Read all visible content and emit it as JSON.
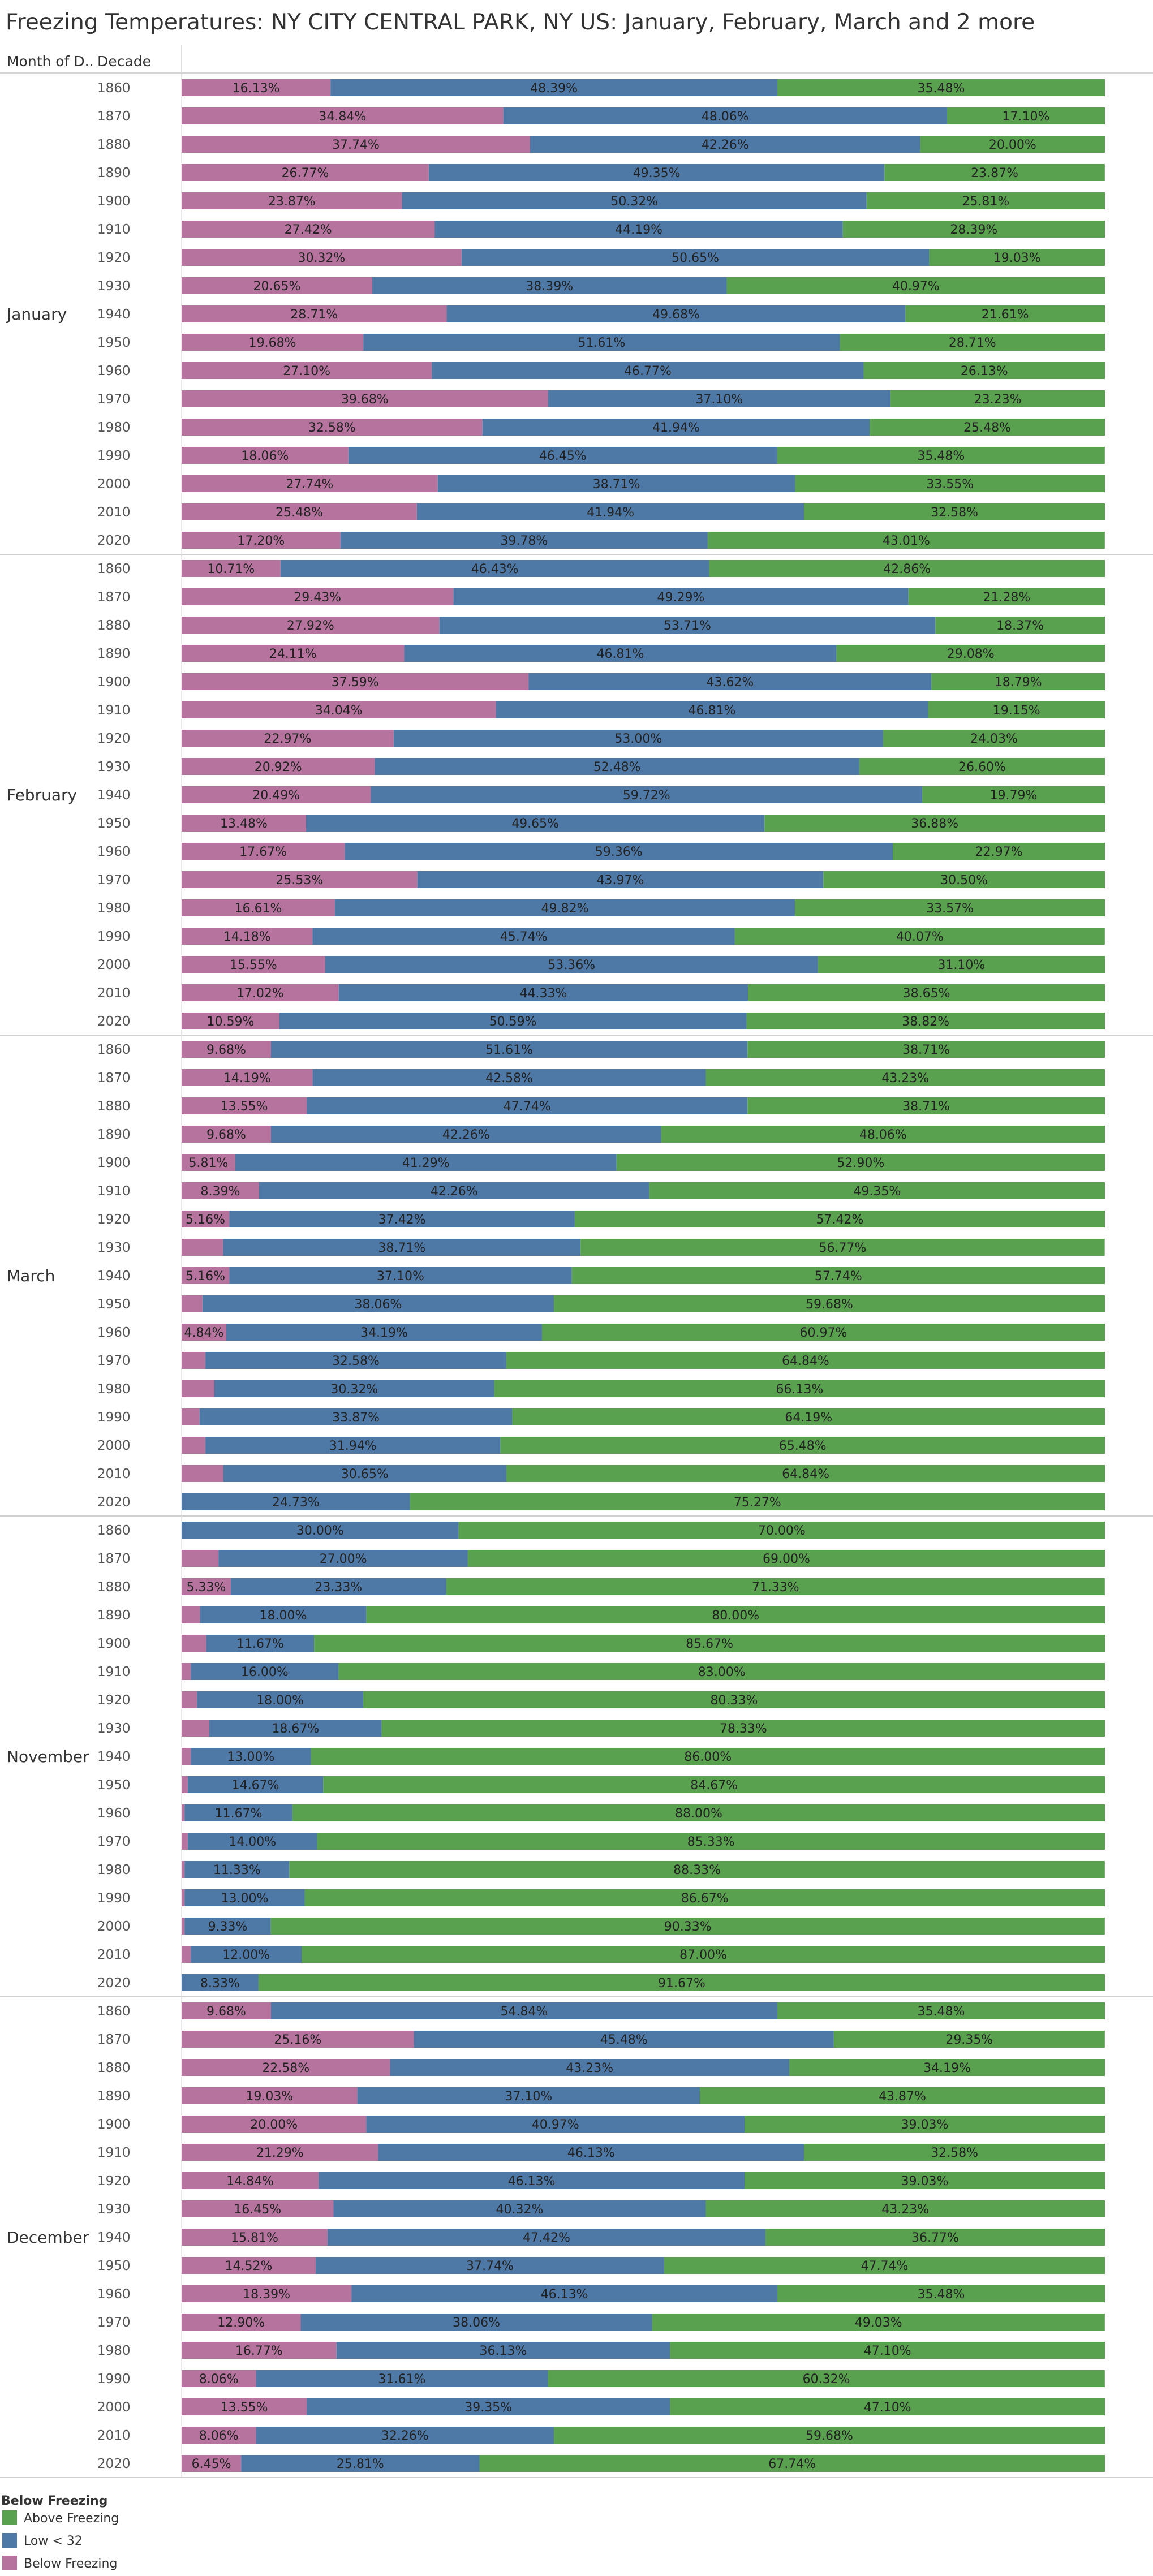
{
  "chart_data": {
    "type": "bar",
    "stacked": "horizontal-100%",
    "title": "Freezing Temperatures: NY CITY CENTRAL PARK, NY US: January, February, March and 2 more",
    "row_headers": [
      "Month of D..",
      "Decade"
    ],
    "xlim": [
      0,
      100
    ],
    "grid": false,
    "legend_title": "Below Freezing",
    "legend_position": "bottom-left",
    "series": [
      {
        "key": "below",
        "name": "Below Freezing",
        "color": "#B5739D"
      },
      {
        "key": "low",
        "name": "Low < 32",
        "color": "#4E79A7"
      },
      {
        "key": "above",
        "name": "Above Freezing",
        "color": "#59A14F"
      }
    ],
    "legend_order": [
      "above",
      "low",
      "below"
    ],
    "decades": [
      "1860",
      "1870",
      "1880",
      "1890",
      "1900",
      "1910",
      "1920",
      "1930",
      "1940",
      "1950",
      "1960",
      "1970",
      "1980",
      "1990",
      "2000",
      "2010",
      "2020"
    ],
    "months": [
      {
        "name": "January",
        "below": [
          16.13,
          34.84,
          37.74,
          26.77,
          23.87,
          27.42,
          30.32,
          20.65,
          28.71,
          19.68,
          27.1,
          39.68,
          32.58,
          18.06,
          27.74,
          25.48,
          17.2
        ],
        "low": [
          48.39,
          48.06,
          42.26,
          49.35,
          50.32,
          44.19,
          50.65,
          38.39,
          49.68,
          51.61,
          46.77,
          37.1,
          41.94,
          46.45,
          38.71,
          41.94,
          39.78
        ],
        "above": [
          35.48,
          17.1,
          20.0,
          23.87,
          25.81,
          28.39,
          19.03,
          40.97,
          21.61,
          28.71,
          26.13,
          23.23,
          25.48,
          35.48,
          33.55,
          32.58,
          43.01
        ],
        "below_labels": [
          "16.13%",
          "34.84%",
          "37.74%",
          "26.77%",
          "23.87%",
          "27.42%",
          "30.32%",
          "20.65%",
          "28.71%",
          "19.68%",
          "27.10%",
          "39.68%",
          "32.58%",
          "18.06%",
          "27.74%",
          "25.48%",
          "17.20%"
        ],
        "low_labels": [
          "48.39%",
          "48.06%",
          "42.26%",
          "49.35%",
          "50.32%",
          "44.19%",
          "50.65%",
          "38.39%",
          "49.68%",
          "51.61%",
          "46.77%",
          "37.10%",
          "41.94%",
          "46.45%",
          "38.71%",
          "41.94%",
          "39.78%"
        ],
        "above_labels": [
          "35.48%",
          "17.10%",
          "20.00%",
          "23.87%",
          "25.81%",
          "28.39%",
          "19.03%",
          "40.97%",
          "21.61%",
          "28.71%",
          "26.13%",
          "23.23%",
          "25.48%",
          "35.48%",
          "33.55%",
          "32.58%",
          "43.01%"
        ]
      },
      {
        "name": "February",
        "below": [
          10.71,
          29.43,
          27.92,
          24.11,
          37.59,
          34.04,
          22.97,
          20.92,
          20.49,
          13.48,
          17.67,
          25.53,
          16.61,
          14.18,
          15.55,
          17.02,
          10.59
        ],
        "low": [
          46.43,
          49.29,
          53.71,
          46.81,
          43.62,
          46.81,
          53.0,
          52.48,
          59.72,
          49.65,
          59.36,
          43.97,
          49.82,
          45.74,
          53.36,
          44.33,
          50.59
        ],
        "above": [
          42.86,
          21.28,
          18.37,
          29.08,
          18.79,
          19.15,
          24.03,
          26.6,
          19.79,
          36.88,
          22.97,
          30.5,
          33.57,
          40.07,
          31.1,
          38.65,
          38.82
        ],
        "below_labels": [
          "10.71%",
          "29.43%",
          "27.92%",
          "24.11%",
          "37.59%",
          "34.04%",
          "22.97%",
          "20.92%",
          "20.49%",
          "13.48%",
          "17.67%",
          "25.53%",
          "16.61%",
          "14.18%",
          "15.55%",
          "17.02%",
          "10.59%"
        ],
        "low_labels": [
          "46.43%",
          "49.29%",
          "53.71%",
          "46.81%",
          "43.62%",
          "46.81%",
          "53.00%",
          "52.48%",
          "59.72%",
          "49.65%",
          "59.36%",
          "43.97%",
          "49.82%",
          "45.74%",
          "53.36%",
          "44.33%",
          "50.59%"
        ],
        "above_labels": [
          "42.86%",
          "21.28%",
          "18.37%",
          "29.08%",
          "18.79%",
          "19.15%",
          "24.03%",
          "26.60%",
          "19.79%",
          "36.88%",
          "22.97%",
          "30.50%",
          "33.57%",
          "40.07%",
          "31.10%",
          "38.65%",
          "38.82%"
        ]
      },
      {
        "name": "March",
        "below": [
          9.68,
          14.19,
          13.55,
          9.68,
          5.81,
          8.39,
          5.16,
          4.5,
          5.16,
          2.26,
          4.84,
          2.58,
          3.55,
          1.94,
          2.58,
          4.52,
          0
        ],
        "low": [
          51.61,
          42.58,
          47.74,
          42.26,
          41.29,
          42.26,
          37.42,
          38.71,
          37.1,
          38.06,
          34.19,
          32.58,
          30.32,
          33.87,
          31.94,
          30.65,
          24.73
        ],
        "above": [
          38.71,
          43.23,
          38.71,
          48.06,
          52.9,
          49.35,
          57.42,
          56.77,
          57.74,
          59.68,
          60.97,
          64.84,
          66.13,
          64.19,
          65.48,
          64.84,
          75.27
        ],
        "below_labels": [
          "9.68%",
          "14.19%",
          "13.55%",
          "9.68%",
          "5.81%",
          "8.39%",
          "5.16%",
          "",
          "5.16%",
          "",
          "4.84%",
          "",
          "",
          "",
          "",
          "",
          ""
        ],
        "low_labels": [
          "51.61%",
          "42.58%",
          "47.74%",
          "42.26%",
          "41.29%",
          "42.26%",
          "37.42%",
          "38.71%",
          "37.10%",
          "38.06%",
          "34.19%",
          "32.58%",
          "30.32%",
          "33.87%",
          "31.94%",
          "30.65%",
          "24.73%"
        ],
        "above_labels": [
          "38.71%",
          "43.23%",
          "38.71%",
          "48.06%",
          "52.90%",
          "49.35%",
          "57.42%",
          "56.77%",
          "57.74%",
          "59.68%",
          "60.97%",
          "64.84%",
          "66.13%",
          "64.19%",
          "65.48%",
          "64.84%",
          "75.27%"
        ]
      },
      {
        "name": "November",
        "below": [
          0,
          4.0,
          5.33,
          2.0,
          2.67,
          1.0,
          1.67,
          3.0,
          1.0,
          0.67,
          0.33,
          0.67,
          0.33,
          0.33,
          0.33,
          1.0,
          0
        ],
        "low": [
          30.0,
          27.0,
          23.33,
          18.0,
          11.67,
          16.0,
          18.0,
          18.67,
          13.0,
          14.67,
          11.67,
          14.0,
          11.33,
          13.0,
          9.33,
          12.0,
          8.33
        ],
        "above": [
          70.0,
          69.0,
          71.33,
          80.0,
          85.67,
          83.0,
          80.33,
          78.33,
          86.0,
          84.67,
          88.0,
          85.33,
          88.33,
          86.67,
          90.33,
          87.0,
          91.67
        ],
        "below_labels": [
          "",
          "",
          "5.33%",
          "",
          "",
          "",
          "",
          "",
          "",
          "",
          "",
          "",
          "",
          "",
          "",
          "",
          ""
        ],
        "low_labels": [
          "30.00%",
          "27.00%",
          "23.33%",
          "18.00%",
          "11.67%",
          "16.00%",
          "18.00%",
          "18.67%",
          "13.00%",
          "14.67%",
          "11.67%",
          "14.00%",
          "11.33%",
          "13.00%",
          "9.33%",
          "12.00%",
          "8.33%"
        ],
        "above_labels": [
          "70.00%",
          "69.00%",
          "71.33%",
          "80.00%",
          "85.67%",
          "83.00%",
          "80.33%",
          "78.33%",
          "86.00%",
          "84.67%",
          "88.00%",
          "85.33%",
          "88.33%",
          "86.67%",
          "90.33%",
          "87.00%",
          "91.67%"
        ]
      },
      {
        "name": "December",
        "below": [
          9.68,
          25.16,
          22.58,
          19.03,
          20.0,
          21.29,
          14.84,
          16.45,
          15.81,
          14.52,
          18.39,
          12.9,
          16.77,
          8.06,
          13.55,
          8.06,
          6.45
        ],
        "low": [
          54.84,
          45.48,
          43.23,
          37.1,
          40.97,
          46.13,
          46.13,
          40.32,
          47.42,
          37.74,
          46.13,
          38.06,
          36.13,
          31.61,
          39.35,
          32.26,
          25.81
        ],
        "above": [
          35.48,
          29.35,
          34.19,
          43.87,
          39.03,
          32.58,
          39.03,
          43.23,
          36.77,
          47.74,
          35.48,
          49.03,
          47.1,
          60.32,
          47.1,
          59.68,
          67.74
        ],
        "below_labels": [
          "9.68%",
          "25.16%",
          "22.58%",
          "19.03%",
          "20.00%",
          "21.29%",
          "14.84%",
          "16.45%",
          "15.81%",
          "14.52%",
          "18.39%",
          "12.90%",
          "16.77%",
          "8.06%",
          "13.55%",
          "8.06%",
          "6.45%"
        ],
        "low_labels": [
          "54.84%",
          "45.48%",
          "43.23%",
          "37.10%",
          "40.97%",
          "46.13%",
          "46.13%",
          "40.32%",
          "47.42%",
          "37.74%",
          "46.13%",
          "38.06%",
          "36.13%",
          "31.61%",
          "39.35%",
          "32.26%",
          "25.81%"
        ],
        "above_labels": [
          "35.48%",
          "29.35%",
          "34.19%",
          "43.87%",
          "39.03%",
          "32.58%",
          "39.03%",
          "43.23%",
          "36.77%",
          "47.74%",
          "35.48%",
          "49.03%",
          "47.10%",
          "60.32%",
          "47.10%",
          "59.68%",
          "67.74%"
        ]
      }
    ]
  }
}
